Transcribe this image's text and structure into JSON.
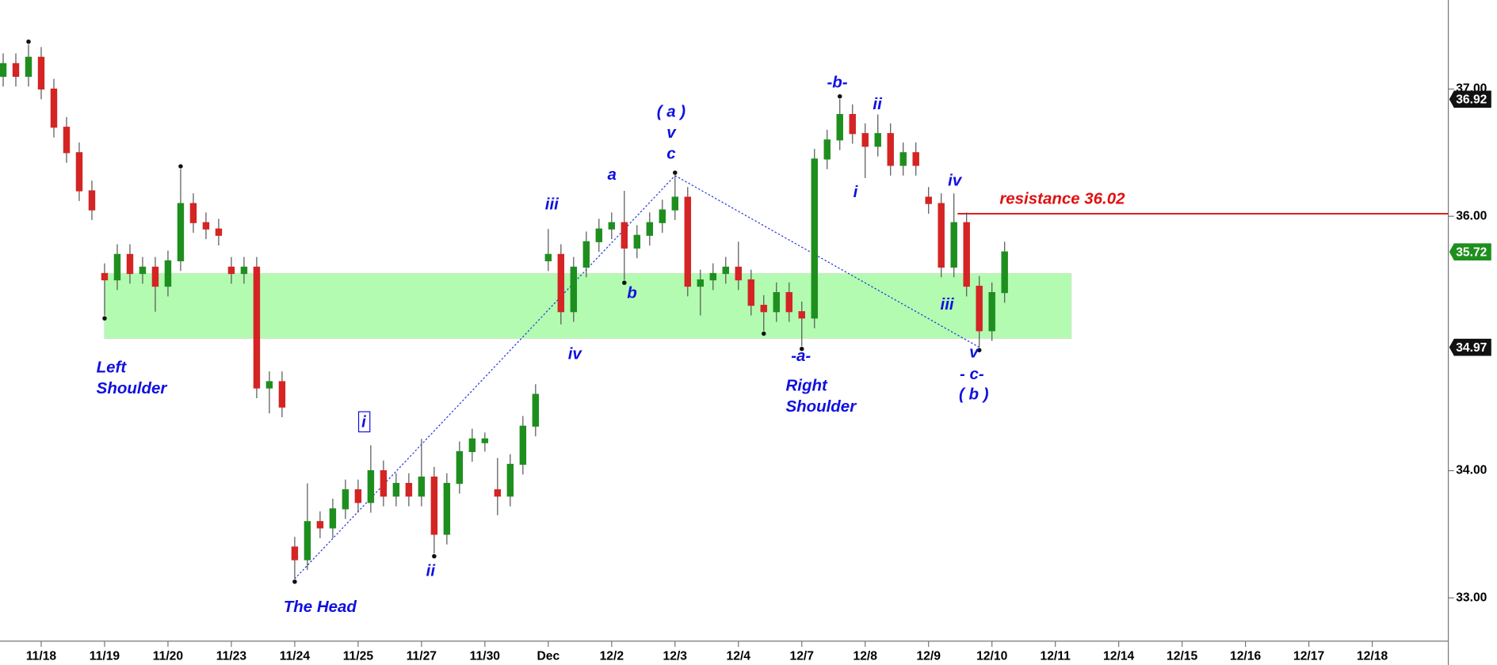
{
  "chart_data": {
    "type": "candlestick",
    "up_color": "#1e8f1e",
    "down_color": "#d42424",
    "xlim": [
      -0.65,
      22.2
    ],
    "ylim": [
      32.66,
      37.7
    ],
    "xticks": [
      {
        "value": 0,
        "label": "11/18"
      },
      {
        "value": 1,
        "label": "11/19"
      },
      {
        "value": 2,
        "label": "11/20"
      },
      {
        "value": 3,
        "label": "11/23"
      },
      {
        "value": 4,
        "label": "11/24"
      },
      {
        "value": 5,
        "label": "11/25"
      },
      {
        "value": 6,
        "label": "11/27"
      },
      {
        "value": 7,
        "label": "11/30"
      },
      {
        "value": 8,
        "label": "Dec"
      },
      {
        "value": 9,
        "label": "12/2"
      },
      {
        "value": 10,
        "label": "12/3"
      },
      {
        "value": 11,
        "label": "12/4"
      },
      {
        "value": 12,
        "label": "12/7"
      },
      {
        "value": 13,
        "label": "12/8"
      },
      {
        "value": 14,
        "label": "12/9"
      },
      {
        "value": 15,
        "label": "12/10"
      },
      {
        "value": 16,
        "label": "12/11"
      },
      {
        "value": 17,
        "label": "12/14"
      },
      {
        "value": 18,
        "label": "12/15"
      },
      {
        "value": 19,
        "label": "12/16"
      },
      {
        "value": 20,
        "label": "12/17"
      },
      {
        "value": 21,
        "label": "12/18"
      }
    ],
    "yticks": [
      {
        "value": 33,
        "label": "33.00"
      },
      {
        "value": 34,
        "label": "34.00"
      },
      {
        "value": 36,
        "label": "36.00"
      },
      {
        "value": 37,
        "label": "37.00"
      }
    ],
    "x": [
      -0.6,
      -0.4,
      -0.2,
      0,
      0.2,
      0.4,
      0.6,
      0.8,
      1,
      1.2,
      1.4,
      1.6,
      1.8,
      2,
      2.2,
      2.4,
      2.6,
      2.8,
      3,
      3.2,
      3.4,
      3.6,
      3.8,
      4,
      4.2,
      4.4,
      4.6,
      4.8,
      5,
      5.2,
      5.4,
      5.6,
      5.8,
      6,
      6.2,
      6.4,
      6.6,
      6.8,
      7,
      7.2,
      7.4,
      7.6,
      7.8,
      8,
      8.2,
      8.4,
      8.6,
      8.8,
      9,
      9.2,
      9.4,
      9.6,
      9.8,
      10,
      10.2,
      10.4,
      10.6,
      10.8,
      11,
      11.2,
      11.4,
      11.6,
      11.8,
      12,
      12.2,
      12.4,
      12.6,
      12.8,
      13,
      13.2,
      13.4,
      13.6,
      13.8,
      14,
      14.2,
      14.4,
      14.6,
      14.8,
      15,
      15.2
    ],
    "open": [
      37.1,
      37.2,
      37.1,
      37.25,
      37.0,
      36.7,
      36.5,
      36.2,
      35.55,
      35.5,
      35.7,
      35.55,
      35.6,
      35.45,
      35.65,
      36.1,
      35.95,
      35.9,
      35.6,
      35.55,
      35.6,
      34.65,
      34.7,
      33.4,
      33.3,
      33.6,
      33.55,
      33.7,
      33.85,
      33.75,
      34.0,
      33.8,
      33.9,
      33.8,
      33.95,
      33.5,
      33.9,
      34.15,
      34.22,
      33.85,
      33.8,
      34.05,
      34.35,
      35.65,
      35.7,
      35.25,
      35.6,
      35.8,
      35.9,
      35.95,
      35.75,
      35.85,
      35.95,
      36.05,
      36.15,
      35.45,
      35.5,
      35.55,
      35.6,
      35.5,
      35.3,
      35.25,
      35.4,
      35.25,
      35.2,
      36.45,
      36.6,
      36.8,
      36.65,
      36.55,
      36.65,
      36.4,
      36.5,
      36.15,
      36.1,
      35.6,
      35.95,
      35.45,
      35.1,
      35.4
    ],
    "high": [
      37.28,
      37.28,
      37.35,
      37.33,
      37.08,
      36.78,
      36.58,
      36.28,
      35.63,
      35.78,
      35.78,
      35.68,
      35.68,
      35.73,
      36.37,
      36.18,
      36.03,
      35.98,
      35.68,
      35.68,
      35.68,
      34.78,
      34.78,
      33.48,
      33.9,
      33.68,
      33.78,
      33.93,
      33.93,
      34.2,
      34.08,
      33.98,
      33.98,
      34.25,
      34.03,
      33.98,
      34.23,
      34.33,
      34.3,
      34.1,
      34.13,
      34.43,
      34.68,
      35.9,
      35.78,
      35.68,
      35.88,
      35.98,
      36.03,
      36.2,
      35.93,
      36.03,
      36.13,
      36.32,
      36.23,
      35.58,
      35.63,
      35.68,
      35.8,
      35.58,
      35.38,
      35.48,
      35.48,
      35.33,
      36.53,
      36.68,
      36.92,
      36.88,
      36.73,
      36.8,
      36.73,
      36.58,
      36.58,
      36.23,
      36.18,
      36.18,
      36.03,
      35.53,
      35.48,
      35.8
    ],
    "low": [
      37.02,
      37.02,
      37.02,
      36.92,
      36.62,
      36.42,
      36.12,
      35.97,
      35.22,
      35.42,
      35.47,
      35.47,
      35.25,
      35.37,
      35.57,
      35.87,
      35.82,
      35.77,
      35.47,
      35.47,
      34.57,
      34.45,
      34.42,
      33.15,
      33.22,
      33.47,
      33.47,
      33.62,
      33.67,
      33.67,
      33.72,
      33.72,
      33.72,
      33.72,
      33.35,
      33.42,
      33.82,
      34.07,
      34.15,
      33.65,
      33.72,
      33.97,
      34.27,
      35.57,
      35.15,
      35.17,
      35.52,
      35.72,
      35.82,
      35.5,
      35.67,
      35.77,
      35.87,
      35.97,
      35.37,
      35.22,
      35.42,
      35.47,
      35.42,
      35.22,
      35.1,
      35.17,
      35.17,
      34.98,
      35.12,
      36.37,
      36.52,
      36.57,
      36.3,
      36.47,
      36.32,
      36.32,
      36.32,
      36.02,
      35.52,
      35.52,
      35.37,
      34.97,
      35.02,
      35.32
    ],
    "close": [
      37.2,
      37.1,
      37.25,
      37.0,
      36.7,
      36.5,
      36.2,
      36.05,
      35.5,
      35.7,
      35.55,
      35.6,
      35.45,
      35.65,
      36.1,
      35.95,
      35.9,
      35.85,
      35.55,
      35.6,
      34.65,
      34.7,
      34.5,
      33.3,
      33.6,
      33.55,
      33.7,
      33.85,
      33.75,
      34.0,
      33.8,
      33.9,
      33.8,
      33.95,
      33.5,
      33.9,
      34.15,
      34.25,
      34.25,
      33.8,
      34.05,
      34.35,
      34.6,
      35.7,
      35.25,
      35.6,
      35.8,
      35.9,
      35.95,
      35.75,
      35.85,
      35.95,
      36.05,
      36.15,
      35.45,
      35.5,
      35.55,
      35.6,
      35.5,
      35.3,
      35.25,
      35.4,
      35.25,
      35.2,
      36.45,
      36.6,
      36.8,
      36.65,
      36.55,
      36.65,
      36.4,
      36.5,
      36.4,
      36.1,
      35.6,
      35.95,
      35.45,
      35.1,
      35.4,
      35.72
    ],
    "zone": {
      "low": 35.04,
      "high": 35.55,
      "x": [
        1.0,
        16.25
      ],
      "color": "#b3fbb0"
    },
    "resistance": {
      "value": 36.02,
      "label": "resistance 36.02",
      "color": "#e01010"
    },
    "price_labels": [
      {
        "value": 36.92,
        "label": "36.92",
        "color": "#111111"
      },
      {
        "value": 35.72,
        "label": "35.72",
        "color": "#1e8f1e"
      },
      {
        "value": 34.97,
        "label": "34.97",
        "color": "#111111"
      }
    ],
    "annotations": [
      "Left",
      "Shoulder",
      "The Head",
      "Right",
      "Shoulder",
      "i",
      "ii",
      "iii",
      "iv",
      "a",
      "b",
      "( a )",
      "v",
      "c",
      "-a-",
      "-b-",
      "i",
      "ii",
      "iv",
      "iii",
      "v",
      "- c-",
      "( b )"
    ]
  }
}
